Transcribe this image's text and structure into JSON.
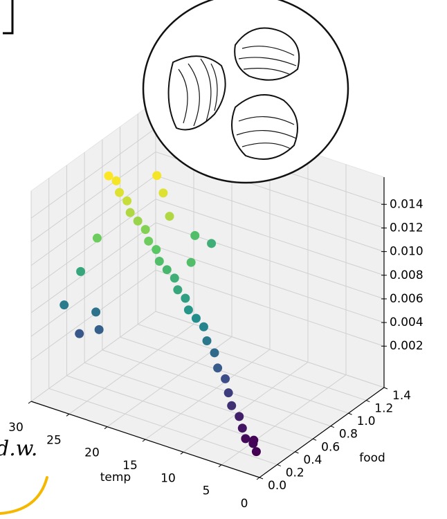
{
  "chart_data": {
    "type": "scatter3d",
    "xlabel": "temp",
    "ylabel": "food",
    "annotation": "d.w.",
    "colormap": "viridis",
    "xlim": [
      0,
      30
    ],
    "ylim": [
      0,
      1.4
    ],
    "zlim": [
      -0.0015,
      0.0163
    ],
    "xticks": [
      0,
      5,
      10,
      15,
      20,
      25,
      30
    ],
    "yticks": [
      {
        "value": 0,
        "label": "0.0"
      },
      0.2,
      0.4,
      0.6,
      0.8,
      {
        "value": 1,
        "label": "1.0"
      },
      1.2,
      1.4
    ],
    "zticks": [
      0.002,
      0.004,
      0.006,
      0.008,
      {
        "value": 0.01,
        "label": "0.010"
      },
      0.012,
      0.014
    ],
    "x": [
      1,
      2,
      3,
      2.5,
      4,
      5,
      6,
      7,
      8,
      9,
      10,
      11,
      12,
      13,
      14,
      15,
      16,
      17,
      18,
      19,
      20,
      21,
      22,
      23,
      24,
      25,
      26,
      27,
      28,
      22,
      24,
      20,
      26,
      27,
      25,
      28,
      24,
      26,
      19,
      18,
      16
    ],
    "y": [
      0.05,
      0.1,
      0.1,
      0.15,
      0.15,
      0.2,
      0.2,
      0.25,
      0.3,
      0.3,
      0.35,
      0.35,
      0.4,
      0.4,
      0.4,
      0.45,
      0.45,
      0.5,
      0.5,
      0.5,
      0.55,
      0.55,
      0.6,
      0.6,
      0.6,
      0.65,
      0.65,
      0.7,
      0.7,
      0.8,
      0.9,
      0.7,
      0.4,
      0.3,
      0.3,
      0.2,
      0.25,
      0.2,
      0.9,
      1.0,
      0.6
    ],
    "values": [
      0.0002,
      0.0004,
      0.0006,
      0.0003,
      0.001,
      0.0015,
      0.0022,
      0.0028,
      0.0035,
      0.0042,
      0.005,
      0.0058,
      0.0065,
      0.007,
      0.0075,
      0.008,
      0.0085,
      0.009,
      0.0095,
      0.01,
      0.0105,
      0.011,
      0.0115,
      0.012,
      0.0125,
      0.013,
      0.0135,
      0.014,
      0.0142,
      0.0135,
      0.014,
      0.0125,
      0.011,
      0.0085,
      0.0055,
      0.006,
      0.0045,
      0.004,
      0.01,
      0.009,
      0.01
    ]
  }
}
